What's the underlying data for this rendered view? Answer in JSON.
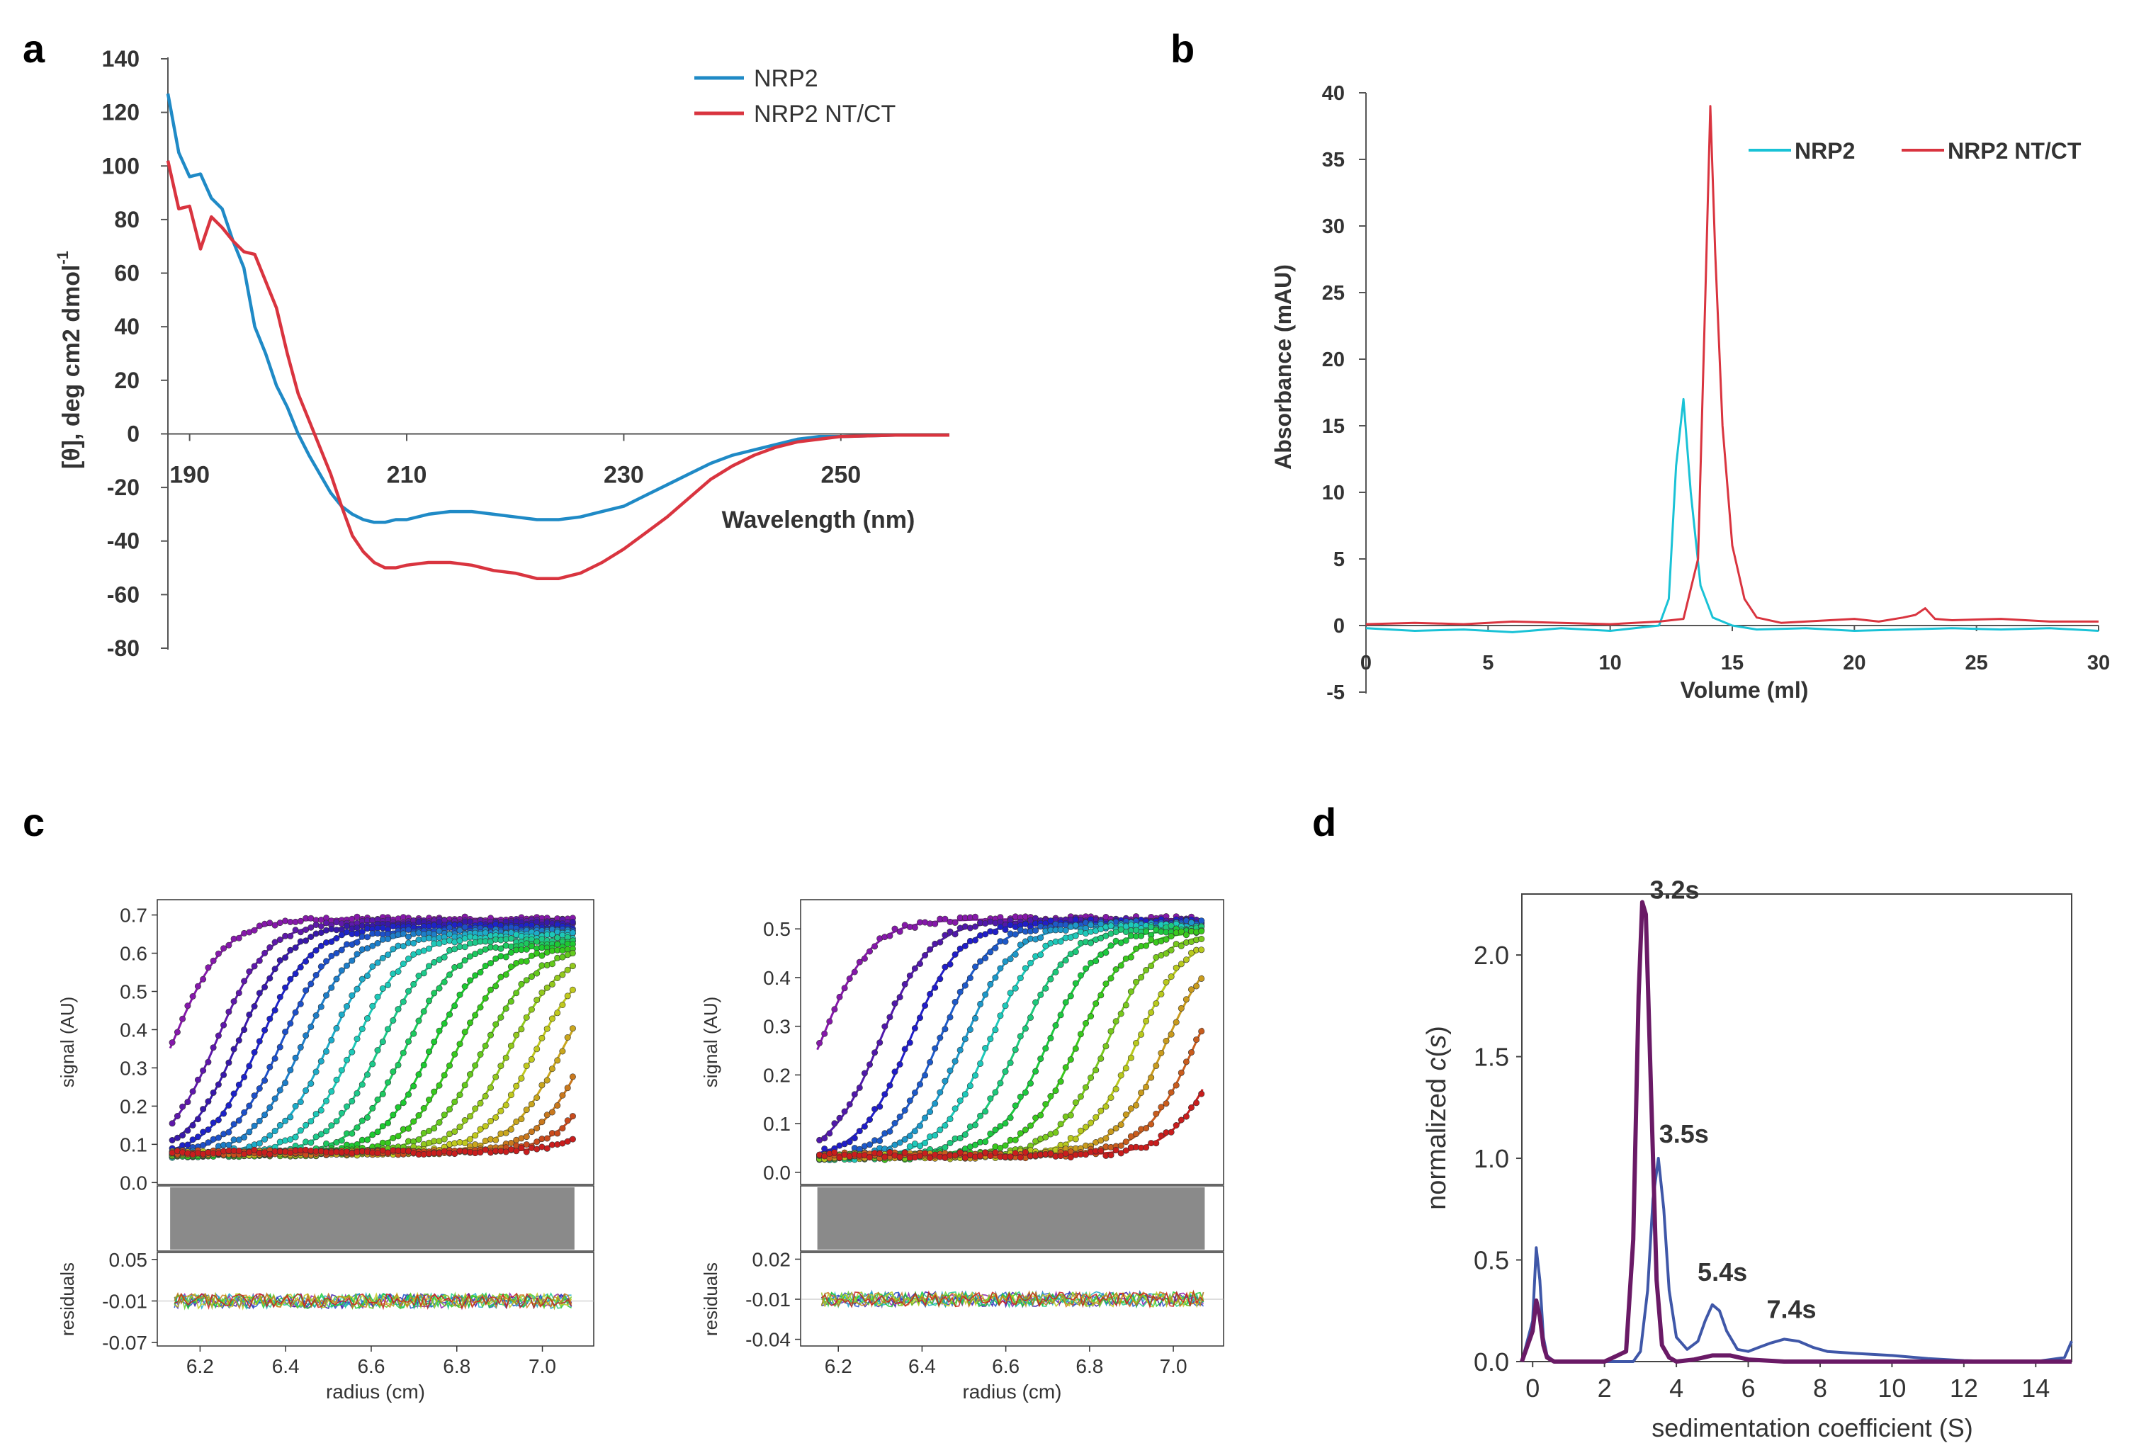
{
  "panel_labels": {
    "a": "a",
    "b": "b",
    "c": "c",
    "d": "d"
  },
  "colors": {
    "nrp2_cd": "#1f8ac6",
    "nrp2ntct_cd": "#d9343f",
    "nrp2_sec": "#19c2d6",
    "nrp2ntct_sec": "#d9343f",
    "d_purple": "#6a1a66",
    "d_blue": "#3f57a8",
    "axis": "#555555",
    "residual_band": "#8a8a8a"
  },
  "chart_data": [
    {
      "id": "a",
      "type": "line",
      "title": "",
      "ylabel": "[θ], deg cm2 dmol",
      "ylabel_sup": "-1",
      "xlabel": "Wavelength  (nm)",
      "xlim": [
        188,
        260
      ],
      "ylim": [
        -80,
        140
      ],
      "yticks": [
        140,
        120,
        100,
        80,
        60,
        40,
        20,
        0,
        -20,
        -40,
        -60,
        -80
      ],
      "xticks": [
        190,
        210,
        230,
        250
      ],
      "legend": [
        "NRP2",
        "NRP2 NT/CT"
      ],
      "series": [
        {
          "name": "NRP2",
          "x": [
            188,
            189,
            190,
            191,
            192,
            193,
            194,
            195,
            196,
            197,
            198,
            199,
            200,
            201,
            202,
            203,
            204,
            205,
            206,
            207,
            208,
            209,
            210,
            212,
            214,
            216,
            218,
            220,
            222,
            224,
            226,
            228,
            230,
            232,
            234,
            236,
            238,
            240,
            242,
            244,
            246,
            248,
            250,
            255,
            260
          ],
          "y": [
            127,
            105,
            96,
            97,
            88,
            84,
            72,
            62,
            40,
            30,
            18,
            10,
            0,
            -8,
            -15,
            -22,
            -27,
            -30,
            -32,
            -33,
            -33,
            -32,
            -32,
            -30,
            -29,
            -29,
            -30,
            -31,
            -32,
            -32,
            -31,
            -29,
            -27,
            -23,
            -19,
            -15,
            -11,
            -8,
            -6,
            -4,
            -2,
            -1,
            -1,
            -0.5,
            -0.5
          ]
        },
        {
          "name": "NRP2 NT/CT",
          "x": [
            188,
            189,
            190,
            191,
            192,
            193,
            194,
            195,
            196,
            197,
            198,
            199,
            200,
            201,
            202,
            203,
            204,
            205,
            206,
            207,
            208,
            209,
            210,
            212,
            214,
            216,
            218,
            220,
            222,
            224,
            226,
            228,
            230,
            232,
            234,
            236,
            238,
            240,
            242,
            244,
            246,
            248,
            250,
            255,
            260
          ],
          "y": [
            102,
            84,
            85,
            69,
            81,
            77,
            72,
            68,
            67,
            57,
            47,
            30,
            15,
            5,
            -5,
            -15,
            -27,
            -38,
            -44,
            -48,
            -50,
            -50,
            -49,
            -48,
            -48,
            -49,
            -51,
            -52,
            -54,
            -54,
            -52,
            -48,
            -43,
            -37,
            -31,
            -24,
            -17,
            -12,
            -8,
            -5,
            -3,
            -2,
            -1,
            -0.5,
            -0.5
          ]
        }
      ]
    },
    {
      "id": "b",
      "type": "line",
      "title": "",
      "ylabel": "Absorbance (mAU)",
      "xlabel": "Volume (ml)",
      "xlim": [
        0,
        30
      ],
      "ylim": [
        -5,
        40
      ],
      "yticks": [
        40,
        35,
        30,
        25,
        20,
        15,
        10,
        5,
        0,
        -5
      ],
      "xticks": [
        0,
        5,
        10,
        15,
        20,
        25,
        30
      ],
      "legend": [
        "NRP2",
        "NRP2 NT/CT"
      ],
      "series": [
        {
          "name": "NRP2",
          "x": [
            0,
            2,
            4,
            6,
            8,
            10,
            11,
            12,
            12.4,
            12.7,
            13,
            13.3,
            13.7,
            14.2,
            15,
            16,
            18,
            20,
            22,
            24,
            26,
            28,
            30
          ],
          "y": [
            -0.2,
            -0.4,
            -0.3,
            -0.5,
            -0.2,
            -0.4,
            -0.2,
            0,
            2,
            12,
            17,
            10,
            3,
            0.6,
            0,
            -0.3,
            -0.2,
            -0.4,
            -0.3,
            -0.2,
            -0.3,
            -0.2,
            -0.4
          ]
        },
        {
          "name": "NRP2 NT/CT",
          "x": [
            0,
            2,
            4,
            6,
            8,
            10,
            12,
            13,
            13.6,
            13.9,
            14.1,
            14.3,
            14.6,
            15,
            15.5,
            16,
            17,
            18,
            20,
            21,
            22,
            22.5,
            22.9,
            23.3,
            24,
            26,
            28,
            30
          ],
          "y": [
            0.1,
            0.2,
            0.1,
            0.3,
            0.2,
            0.1,
            0.3,
            0.5,
            5,
            25,
            39,
            28,
            15,
            6,
            2,
            0.6,
            0.2,
            0.3,
            0.5,
            0.3,
            0.6,
            0.8,
            1.3,
            0.5,
            0.4,
            0.5,
            0.3,
            0.3
          ]
        }
      ]
    },
    {
      "id": "c1",
      "type": "scatter",
      "ylabel": "signal (AU)",
      "xlabel": "radius (cm)",
      "xlim": [
        6.1,
        7.12
      ],
      "ylim": [
        -0.005,
        0.74
      ],
      "yticks": [
        "0.7",
        "0.6",
        "0.5",
        "0.4",
        "0.3",
        "0.2",
        "0.1",
        "0.0"
      ],
      "ytick_values": [
        0.7,
        0.6,
        0.5,
        0.4,
        0.3,
        0.2,
        0.1,
        0.0
      ],
      "xticks": [
        "6.2",
        "6.4",
        "6.6",
        "6.8",
        "7.0"
      ],
      "xtick_values": [
        6.2,
        6.4,
        6.6,
        6.8,
        7.0
      ],
      "residuals_label": "residuals",
      "residuals_yticks": [
        "0.05",
        "-0.01",
        "-0.07"
      ],
      "residuals_ytick_values": [
        0.05,
        -0.01,
        -0.07
      ],
      "residuals_ylim": [
        -0.075,
        0.06
      ],
      "meniscus": 6.13,
      "baseline": 0.065,
      "plateau": 0.69,
      "boundary_midpoints": [
        6.14,
        6.24,
        6.29,
        6.34,
        6.39,
        6.44,
        6.5,
        6.56,
        6.62,
        6.68,
        6.74,
        6.8,
        6.86,
        6.92,
        6.98,
        7.04,
        7.1,
        7.16,
        7.22
      ],
      "boundary_width": 0.06
    },
    {
      "id": "c2",
      "type": "scatter",
      "ylabel": "signal (AU)",
      "xlabel": "radius (cm)",
      "xlim": [
        6.11,
        7.12
      ],
      "ylim": [
        -0.025,
        0.56
      ],
      "yticks": [
        "0.5",
        "0.4",
        "0.3",
        "0.2",
        "0.1",
        "0.0"
      ],
      "ytick_values": [
        0.5,
        0.4,
        0.3,
        0.2,
        0.1,
        0.0
      ],
      "xticks": [
        "6.2",
        "6.4",
        "6.6",
        "6.8",
        "7.0"
      ],
      "xtick_values": [
        6.2,
        6.4,
        6.6,
        6.8,
        7.0
      ],
      "residuals_label": "residuals",
      "residuals_yticks": [
        "0.02",
        "-0.01",
        "-0.04"
      ],
      "residuals_ytick_values": [
        0.02,
        -0.01,
        -0.04
      ],
      "residuals_ylim": [
        -0.045,
        0.025
      ],
      "meniscus": 6.15,
      "baseline": 0.025,
      "plateau": 0.52,
      "boundary_midpoints": [
        6.16,
        6.3,
        6.37,
        6.44,
        6.5,
        6.56,
        6.63,
        6.7,
        6.77,
        6.84,
        6.91,
        6.98,
        7.05,
        7.12
      ],
      "boundary_width": 0.06
    },
    {
      "id": "d",
      "type": "line",
      "ylabel_prefix": "normalized ",
      "ylabel_italic": "c",
      "ylabel_paren_open": "(",
      "ylabel_italic_s": "s",
      "ylabel_paren_close": ")",
      "xlabel": "sedimentation coefficient (S)",
      "xlim": [
        -0.3,
        15
      ],
      "ylim": [
        0,
        2.3
      ],
      "yticks": [
        "0.0",
        "0.5",
        "1.0",
        "1.5",
        "2.0"
      ],
      "ytick_values": [
        0.0,
        0.5,
        1.0,
        1.5,
        2.0
      ],
      "xticks": [
        "0",
        "2",
        "4",
        "6",
        "8",
        "10",
        "12",
        "14"
      ],
      "xtick_values": [
        0,
        2,
        4,
        6,
        8,
        10,
        12,
        14
      ],
      "annotations": [
        {
          "text": "3.2s",
          "x": 3.2,
          "y": 2.25
        },
        {
          "text": "3.5s",
          "x": 3.5,
          "y": 1.0
        },
        {
          "text": "5.4s",
          "x": 5.4,
          "y": 0.3
        },
        {
          "text": "7.4s",
          "x": 7.4,
          "y": 0.13
        }
      ],
      "series": [
        {
          "name": "purple",
          "x": [
            -0.3,
            0,
            0.1,
            0.2,
            0.3,
            0.4,
            0.6,
            1,
            2,
            2.6,
            2.8,
            2.95,
            3.05,
            3.15,
            3.3,
            3.45,
            3.6,
            3.8,
            4,
            4.5,
            5,
            5.5,
            6,
            7,
            8,
            10,
            12,
            14,
            15
          ],
          "y": [
            0,
            0.15,
            0.3,
            0.22,
            0.08,
            0.02,
            0,
            0,
            0,
            0.05,
            0.6,
            1.8,
            2.26,
            2.2,
            1.3,
            0.4,
            0.08,
            0.02,
            0,
            0.01,
            0.03,
            0.03,
            0.01,
            0,
            0,
            0,
            0,
            0,
            0
          ]
        },
        {
          "name": "blue",
          "x": [
            -0.3,
            0,
            0.1,
            0.2,
            0.3,
            0.4,
            0.6,
            1,
            2,
            2.8,
            3.0,
            3.2,
            3.35,
            3.5,
            3.65,
            3.8,
            4.0,
            4.3,
            4.6,
            4.8,
            5.0,
            5.2,
            5.4,
            5.7,
            6.0,
            6.3,
            6.6,
            7.0,
            7.4,
            7.8,
            8.2,
            8.6,
            9.0,
            10,
            11,
            12,
            13,
            14,
            14.8,
            15
          ],
          "y": [
            0,
            0.2,
            0.56,
            0.4,
            0.12,
            0.03,
            0,
            0,
            0,
            0,
            0.05,
            0.35,
            0.8,
            1.0,
            0.75,
            0.35,
            0.12,
            0.06,
            0.1,
            0.2,
            0.28,
            0.25,
            0.15,
            0.06,
            0.05,
            0.07,
            0.09,
            0.11,
            0.1,
            0.07,
            0.05,
            0.045,
            0.04,
            0.03,
            0.015,
            0.005,
            0,
            0,
            0.02,
            0.1
          ]
        }
      ]
    }
  ]
}
